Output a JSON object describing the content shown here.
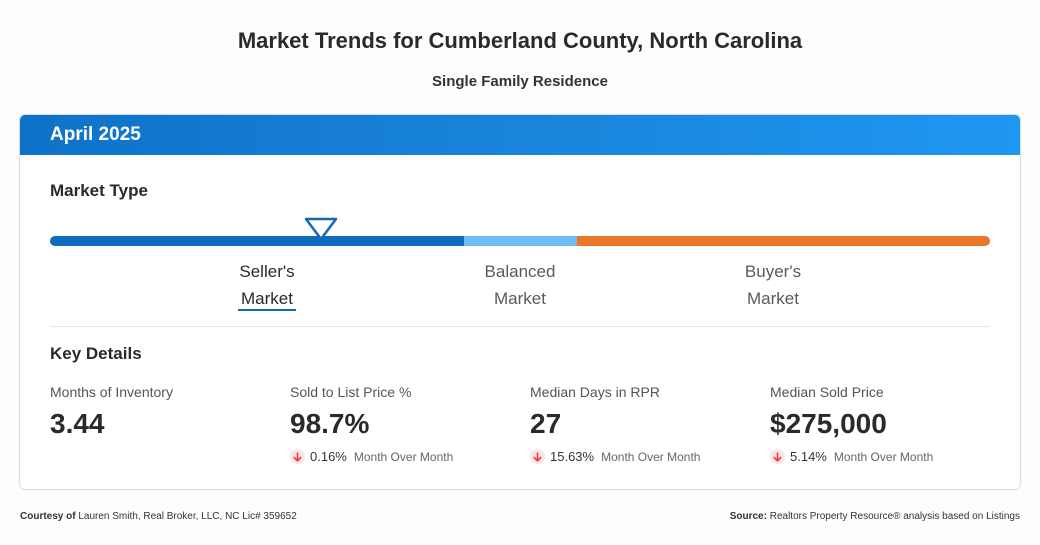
{
  "header": {
    "title": "Market Trends for Cumberland County, North Carolina",
    "subtitle": "Single Family Residence"
  },
  "card": {
    "period": "April 2025",
    "market_type": {
      "heading": "Market Type",
      "labels": {
        "seller_line1": "Seller's",
        "seller_line2": "Market",
        "balanced_line1": "Balanced",
        "balanced_line2": "Market",
        "buyer_line1": "Buyer's",
        "buyer_line2": "Market"
      },
      "selected": "Seller's Market",
      "colors": {
        "seller": "#0e6bbd",
        "balanced": "#6fbdf5",
        "buyer": "#ea7628"
      }
    },
    "key_details": {
      "heading": "Key Details",
      "stats": [
        {
          "label": "Months of Inventory",
          "value": "3.44"
        },
        {
          "label": "Sold to List Price %",
          "value": "98.7%",
          "change": "0.16%",
          "change_suffix": "Month Over Month",
          "direction": "down"
        },
        {
          "label": "Median Days in RPR",
          "value": "27",
          "change": "15.63%",
          "change_suffix": "Month Over Month",
          "direction": "down"
        },
        {
          "label": "Median Sold Price",
          "value": "$275,000",
          "change": "5.14%",
          "change_suffix": "Month Over Month",
          "direction": "down"
        }
      ]
    }
  },
  "footer": {
    "courtesy_label": "Courtesy of",
    "courtesy_text": "Lauren Smith, Real Broker, LLC, NC Lic# 359652",
    "source_label": "Source:",
    "source_text": "Realtors Property Resource® analysis based on Listings"
  },
  "icons": {
    "down_arrow": "arrow-down-icon",
    "marker": "triangle-marker-icon"
  }
}
